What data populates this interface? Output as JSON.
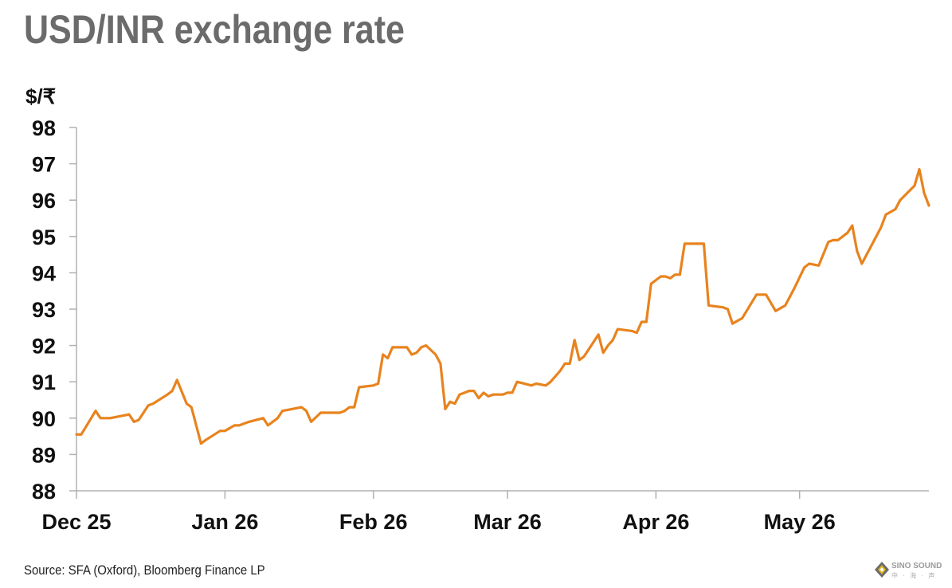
{
  "title": "USD/INR exchange rate",
  "source": "Source: SFA (Oxford), Bloomberg Finance LP",
  "watermark": {
    "name": "SINO SOUND",
    "sub": "中 · 海 · 声"
  },
  "colors": {
    "line": "#e8831e",
    "axis": "#b0b0b0",
    "title": "#6b6b6b"
  },
  "chart_data": {
    "type": "line",
    "title": "USD/INR exchange rate",
    "ylabel": "$/₹",
    "xlabel": "",
    "ylim": [
      88,
      98
    ],
    "yticks": [
      88,
      89,
      90,
      91,
      92,
      93,
      94,
      95,
      96,
      97,
      98
    ],
    "xticks": [
      "Dec 25",
      "Jan 26",
      "Feb 26",
      "Mar 26",
      "Apr 26",
      "May 26"
    ],
    "xlim": [
      "2025-12-01",
      "2026-05-28"
    ],
    "grid": false,
    "legend": "none",
    "series": [
      {
        "name": "",
        "points": [
          [
            "2025-12-01",
            89.55
          ],
          [
            "2025-12-02",
            89.55
          ],
          [
            "2025-12-05",
            90.2
          ],
          [
            "2025-12-06",
            90.0
          ],
          [
            "2025-12-08",
            90.0
          ],
          [
            "2025-12-12",
            90.1
          ],
          [
            "2025-12-13",
            89.9
          ],
          [
            "2025-12-14",
            89.95
          ],
          [
            "2025-12-16",
            90.35
          ],
          [
            "2025-12-17",
            90.4
          ],
          [
            "2025-12-20",
            90.65
          ],
          [
            "2025-12-21",
            90.75
          ],
          [
            "2025-12-22",
            91.05
          ],
          [
            "2025-12-24",
            90.4
          ],
          [
            "2025-12-25",
            90.3
          ],
          [
            "2025-12-27",
            89.3
          ],
          [
            "2025-12-28",
            89.4
          ],
          [
            "2025-12-31",
            89.65
          ],
          [
            "2026-01-01",
            89.65
          ],
          [
            "2026-01-03",
            89.8
          ],
          [
            "2026-01-04",
            89.8
          ],
          [
            "2026-01-06",
            89.9
          ],
          [
            "2026-01-09",
            90.0
          ],
          [
            "2026-01-10",
            89.8
          ],
          [
            "2026-01-12",
            90.0
          ],
          [
            "2026-01-13",
            90.2
          ],
          [
            "2026-01-15",
            90.25
          ],
          [
            "2026-01-17",
            90.3
          ],
          [
            "2026-01-18",
            90.2
          ],
          [
            "2026-01-19",
            89.9
          ],
          [
            "2026-01-21",
            90.15
          ],
          [
            "2026-01-25",
            90.15
          ],
          [
            "2026-01-26",
            90.2
          ],
          [
            "2026-01-27",
            90.3
          ],
          [
            "2026-01-28",
            90.3
          ],
          [
            "2026-01-29",
            90.85
          ],
          [
            "2026-02-01",
            90.9
          ],
          [
            "2026-02-02",
            90.95
          ],
          [
            "2026-02-03",
            91.75
          ],
          [
            "2026-02-04",
            91.65
          ],
          [
            "2026-02-05",
            91.95
          ],
          [
            "2026-02-08",
            91.95
          ],
          [
            "2026-02-09",
            91.75
          ],
          [
            "2026-02-10",
            91.8
          ],
          [
            "2026-02-11",
            91.95
          ],
          [
            "2026-02-12",
            92.0
          ],
          [
            "2026-02-14",
            91.75
          ],
          [
            "2026-02-15",
            91.5
          ],
          [
            "2026-02-16",
            90.25
          ],
          [
            "2026-02-17",
            90.45
          ],
          [
            "2026-02-18",
            90.4
          ],
          [
            "2026-02-19",
            90.65
          ],
          [
            "2026-02-21",
            90.75
          ],
          [
            "2026-02-22",
            90.75
          ],
          [
            "2026-02-23",
            90.55
          ],
          [
            "2026-02-24",
            90.7
          ],
          [
            "2026-02-25",
            90.6
          ],
          [
            "2026-02-26",
            90.65
          ],
          [
            "2026-02-28",
            90.65
          ],
          [
            "2026-03-01",
            90.7
          ],
          [
            "2026-03-02",
            90.7
          ],
          [
            "2026-03-03",
            91.0
          ],
          [
            "2026-03-06",
            90.9
          ],
          [
            "2026-03-07",
            90.95
          ],
          [
            "2026-03-09",
            90.9
          ],
          [
            "2026-03-10",
            91.0
          ],
          [
            "2026-03-12",
            91.3
          ],
          [
            "2026-03-13",
            91.5
          ],
          [
            "2026-03-14",
            91.5
          ],
          [
            "2026-03-15",
            92.15
          ],
          [
            "2026-03-16",
            91.6
          ],
          [
            "2026-03-17",
            91.7
          ],
          [
            "2026-03-20",
            92.3
          ],
          [
            "2026-03-21",
            91.8
          ],
          [
            "2026-03-22",
            92.0
          ],
          [
            "2026-03-23",
            92.15
          ],
          [
            "2026-03-24",
            92.45
          ],
          [
            "2026-03-27",
            92.4
          ],
          [
            "2026-03-28",
            92.35
          ],
          [
            "2026-03-29",
            92.65
          ],
          [
            "2026-03-30",
            92.65
          ],
          [
            "2026-03-31",
            93.7
          ],
          [
            "2026-04-02",
            93.9
          ],
          [
            "2026-04-03",
            93.9
          ],
          [
            "2026-04-04",
            93.85
          ],
          [
            "2026-04-05",
            93.95
          ],
          [
            "2026-04-06",
            93.95
          ],
          [
            "2026-04-07",
            94.8
          ],
          [
            "2026-04-11",
            94.8
          ],
          [
            "2026-04-12",
            93.1
          ],
          [
            "2026-04-15",
            93.05
          ],
          [
            "2026-04-16",
            93.0
          ],
          [
            "2026-04-17",
            92.6
          ],
          [
            "2026-04-19",
            92.75
          ],
          [
            "2026-04-22",
            93.4
          ],
          [
            "2026-04-24",
            93.4
          ],
          [
            "2026-04-26",
            92.95
          ],
          [
            "2026-04-28",
            93.1
          ],
          [
            "2026-04-30",
            93.6
          ],
          [
            "2026-05-02",
            94.15
          ],
          [
            "2026-05-03",
            94.25
          ],
          [
            "2026-05-05",
            94.2
          ],
          [
            "2026-05-07",
            94.85
          ],
          [
            "2026-05-08",
            94.9
          ],
          [
            "2026-05-09",
            94.9
          ],
          [
            "2026-05-11",
            95.1
          ],
          [
            "2026-05-12",
            95.3
          ],
          [
            "2026-05-13",
            94.6
          ],
          [
            "2026-05-14",
            94.25
          ],
          [
            "2026-05-18",
            95.25
          ],
          [
            "2026-05-19",
            95.6
          ],
          [
            "2026-05-21",
            95.75
          ],
          [
            "2026-05-22",
            96.0
          ],
          [
            "2026-05-25",
            96.4
          ],
          [
            "2026-05-26",
            96.85
          ],
          [
            "2026-05-27",
            96.2
          ],
          [
            "2026-05-28",
            95.85
          ]
        ]
      }
    ]
  }
}
